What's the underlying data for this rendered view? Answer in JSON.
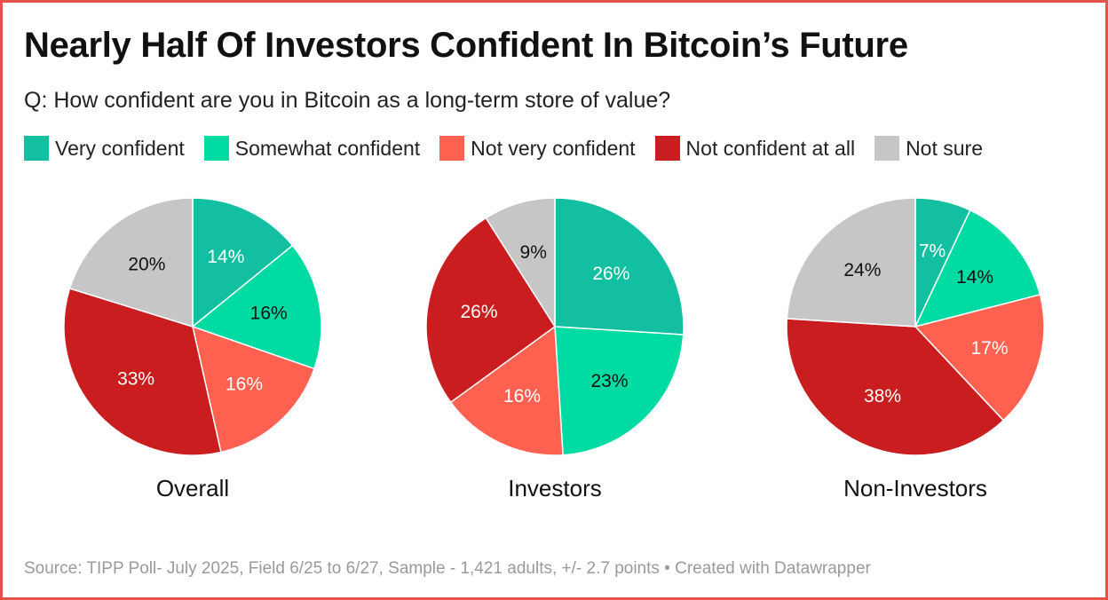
{
  "title": "Nearly Half Of Investors Confident In Bitcoin’s Future",
  "subtitle": "Q: How confident are you in Bitcoin as a long-term store of value?",
  "legend": [
    {
      "label": "Very confident",
      "color": "#12bfa0"
    },
    {
      "label": "Somewhat confident",
      "color": "#00dba3"
    },
    {
      "label": "Not very confident",
      "color": "#ff6150"
    },
    {
      "label": "Not confident at all",
      "color": "#c91d1f"
    },
    {
      "label": "Not sure",
      "color": "#c6c6c6"
    }
  ],
  "chart_data": [
    {
      "type": "pie",
      "title": "Overall",
      "categories": [
        "Very confident",
        "Somewhat confident",
        "Not very confident",
        "Not confident at all",
        "Not sure"
      ],
      "values": [
        14,
        16,
        16,
        33,
        20
      ],
      "labels": [
        "14%",
        "16%",
        "16%",
        "33%",
        "20%"
      ]
    },
    {
      "type": "pie",
      "title": "Investors",
      "categories": [
        "Very confident",
        "Somewhat confident",
        "Not very confident",
        "Not confident at all",
        "Not sure"
      ],
      "values": [
        26,
        23,
        16,
        26,
        9
      ],
      "labels": [
        "26%",
        "23%",
        "16%",
        "26%",
        "9%"
      ]
    },
    {
      "type": "pie",
      "title": "Non-Investors",
      "categories": [
        "Very confident",
        "Somewhat confident",
        "Not very confident",
        "Not confident at all",
        "Not sure"
      ],
      "values": [
        7,
        14,
        17,
        38,
        24
      ],
      "labels": [
        "7%",
        "14%",
        "17%",
        "38%",
        "24%"
      ]
    }
  ],
  "label_colors": [
    "#ffffff",
    "#111111",
    "#ffffff",
    "#ffffff",
    "#111111"
  ],
  "source": "Source: TIPP Poll- July 2025, Field 6/25 to 6/27, Sample - 1,421 adults, +/- 2.7 points • Created with Datawrapper"
}
